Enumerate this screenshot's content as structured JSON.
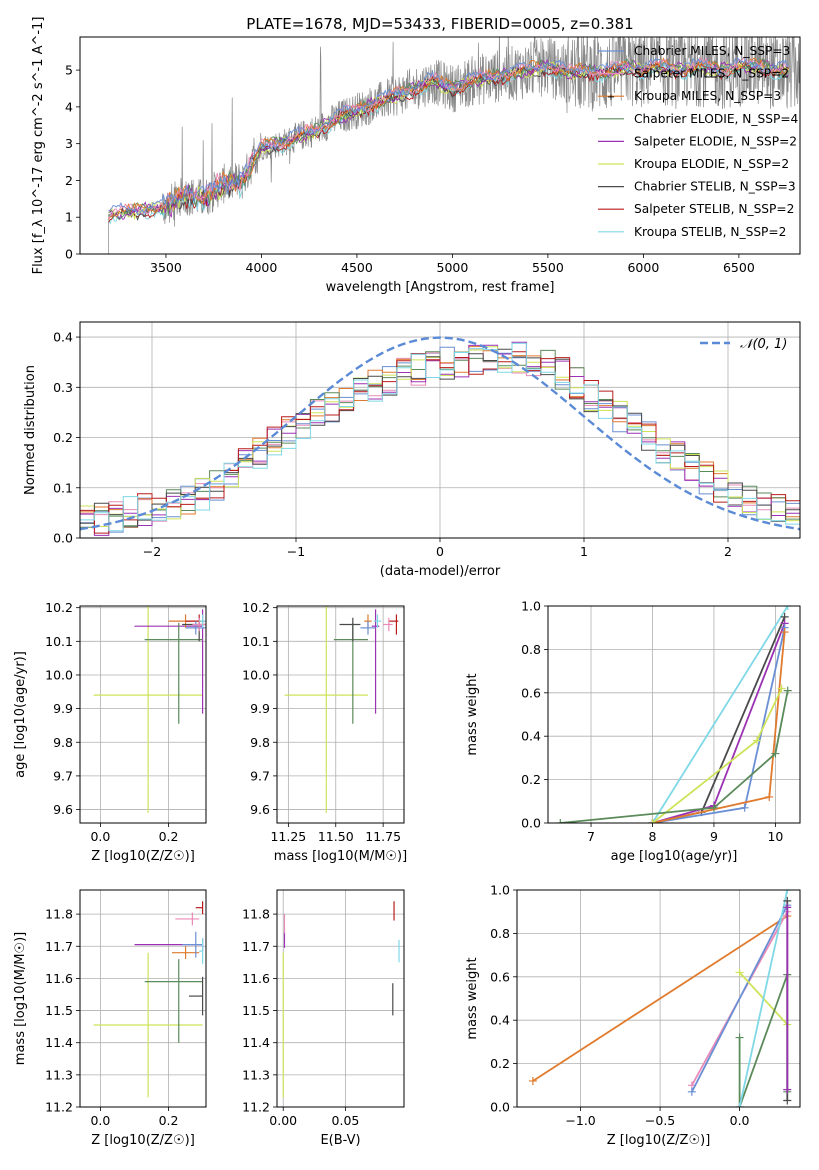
{
  "colors": {
    "chabrier_miles": "#6a8fd4",
    "salpeter_miles": "#e98bb8",
    "kroupa_miles": "#e07a2d",
    "chabrier_elodie": "#5b8a5b",
    "salpeter_elodie": "#9b32b4",
    "kroupa_elodie": "#cfe35a",
    "chabrier_stelib": "#4a4a4a",
    "salpeter_stelib": "#b81c1c",
    "kroupa_stelib": "#7fd8e6",
    "normal_curve": "#5b8ad6",
    "spectrum_gray": "#888888"
  },
  "chart_data": [
    {
      "id": "spectrum",
      "type": "line",
      "title": "PLATE=1678, MJD=53433, FIBERID=0005, z=0.381",
      "xlabel": "wavelength [Angstrom, rest frame]",
      "ylabel": "Flux [f_λ 10^-17 erg cm^-2 s^-1 A^-1]",
      "xlim": [
        3050,
        6820
      ],
      "ylim": [
        0,
        5.9
      ],
      "xticks": [
        3500,
        4000,
        4500,
        5000,
        5500,
        6000,
        6500
      ],
      "yticks": [
        0,
        1,
        2,
        3,
        4,
        5
      ],
      "legend_position": "top-right",
      "legend": [
        {
          "label": "Chabrier MILES, N_SSP=3",
          "color_key": "chabrier_miles"
        },
        {
          "label": "Salpeter MILES, N_SSP=2",
          "color_key": "salpeter_miles"
        },
        {
          "label": "Kroupa MILES, N_SSP=3",
          "color_key": "kroupa_miles"
        },
        {
          "label": "Chabrier ELODIE, N_SSP=4",
          "color_key": "chabrier_elodie"
        },
        {
          "label": "Salpeter ELODIE, N_SSP=2",
          "color_key": "salpeter_elodie"
        },
        {
          "label": "Kroupa ELODIE, N_SSP=2",
          "color_key": "kroupa_elodie"
        },
        {
          "label": "Chabrier STELIB, N_SSP=3",
          "color_key": "chabrier_stelib"
        },
        {
          "label": "Salpeter STELIB, N_SSP=2",
          "color_key": "salpeter_stelib"
        },
        {
          "label": "Kroupa STELIB, N_SSP=2",
          "color_key": "kroupa_stelib"
        }
      ],
      "model_continuum": {
        "x": [
          3200,
          3300,
          3400,
          3500,
          3600,
          3700,
          3800,
          3900,
          4000,
          4100,
          4200,
          4300,
          4400,
          4500,
          4600,
          4700,
          4800,
          4900,
          5000,
          5100,
          5200,
          5300,
          5400,
          5500,
          5600,
          5700,
          5800,
          5900,
          6000,
          6100,
          6200,
          6300,
          6400,
          6500,
          6600,
          6700
        ],
        "y": [
          1.05,
          1.15,
          1.2,
          1.3,
          1.6,
          1.5,
          1.9,
          2.0,
          2.9,
          3.0,
          3.2,
          3.4,
          3.7,
          3.9,
          4.1,
          4.3,
          4.5,
          4.7,
          4.5,
          4.7,
          4.8,
          4.9,
          5.0,
          5.1,
          4.9,
          5.0,
          4.9,
          5.1,
          5.0,
          5.1,
          5.0,
          5.1,
          5.0,
          5.1,
          5.1,
          5.0
        ]
      }
    },
    {
      "id": "residuals",
      "type": "line",
      "xlabel": "(data-model)/error",
      "ylabel": "Normed distribution",
      "xlim": [
        -2.5,
        2.5
      ],
      "ylim": [
        0,
        0.43
      ],
      "xticks": [
        -2,
        -1,
        0,
        1,
        2
      ],
      "yticks": [
        0.0,
        0.1,
        0.2,
        0.3,
        0.4
      ],
      "legend_position": "top-right",
      "legend": [
        {
          "label": "𝒩(0, 1)",
          "color_key": "normal_curve"
        }
      ],
      "hist_shape": {
        "x": [
          -2.5,
          -2.3,
          -2.1,
          -1.9,
          -1.7,
          -1.5,
          -1.3,
          -1.1,
          -0.9,
          -0.7,
          -0.5,
          -0.3,
          -0.1,
          0.1,
          0.3,
          0.5,
          0.7,
          0.9,
          1.1,
          1.3,
          1.5,
          1.7,
          1.9,
          2.1,
          2.3,
          2.5
        ],
        "y": [
          0.03,
          0.04,
          0.055,
          0.06,
          0.08,
          0.11,
          0.16,
          0.2,
          0.24,
          0.27,
          0.3,
          0.32,
          0.34,
          0.35,
          0.36,
          0.36,
          0.35,
          0.32,
          0.27,
          0.23,
          0.19,
          0.15,
          0.11,
          0.08,
          0.06,
          0.05
        ]
      }
    },
    {
      "id": "age_vs_z",
      "type": "scatter",
      "xlabel": "Z [log10(Z/Z☉)]",
      "ylabel": "age  [log10(age/yr)]",
      "xlim": [
        -0.06,
        0.31
      ],
      "ylim": [
        9.56,
        10.205
      ],
      "xticks": [
        0.0,
        0.2
      ],
      "yticks": [
        9.6,
        9.7,
        9.8,
        9.9,
        10.0,
        10.1,
        10.2
      ],
      "points": [
        {
          "key": "kroupa_elodie",
          "x": 0.14,
          "xerr": 0.16,
          "y": 9.94,
          "yerr": 0.35
        },
        {
          "key": "salpeter_elodie",
          "x": 0.3,
          "xerr_lo": 0.2,
          "xerr_hi": 0,
          "y": 10.145,
          "yerr_lo": 0.26,
          "yerr_hi": 0.05
        },
        {
          "key": "chabrier_elodie",
          "x": 0.23,
          "xerr_lo": 0.1,
          "xerr_hi": 0.07,
          "y": 10.105,
          "yerr_lo": 0.25,
          "yerr_hi": 0.05
        },
        {
          "key": "kroupa_miles",
          "x": 0.25,
          "xerr_lo": 0.05,
          "xerr_hi": 0.05,
          "y": 10.16,
          "yerr_lo": 0.02,
          "yerr_hi": 0.02
        },
        {
          "key": "chabrier_stelib",
          "x": 0.29,
          "xerr_lo": 0.05,
          "xerr_hi": 0.02,
          "y": 10.15,
          "yerr_lo": 0.05,
          "yerr_hi": 0.02
        },
        {
          "key": "salpeter_stelib",
          "x": 0.29,
          "xerr_lo": 0.04,
          "xerr_hi": 0.02,
          "y": 10.16,
          "yerr_lo": 0.02,
          "yerr_hi": 0.02
        },
        {
          "key": "chabrier_miles",
          "x": 0.28,
          "xerr_lo": 0.03,
          "xerr_hi": 0.03,
          "y": 10.14,
          "yerr_lo": 0.02,
          "yerr_hi": 0.02
        },
        {
          "key": "salpeter_miles",
          "x": 0.29,
          "xerr_lo": 0.02,
          "xerr_hi": 0.02,
          "y": 10.15,
          "yerr_lo": 0.02,
          "yerr_hi": 0.02
        },
        {
          "key": "kroupa_stelib",
          "x": 0.3,
          "xerr_lo": 0.01,
          "xerr_hi": 0.01,
          "y": 10.16,
          "yerr_lo": 0.02,
          "yerr_hi": 0.02
        }
      ]
    },
    {
      "id": "age_vs_mass",
      "type": "scatter",
      "xlabel": "mass [log10(M/M☉)]",
      "ylabel": "",
      "xlim": [
        11.19,
        11.86
      ],
      "ylim": [
        9.56,
        10.205
      ],
      "xticks": [
        11.25,
        11.5,
        11.75
      ],
      "yticks": [
        9.6,
        9.7,
        9.8,
        9.9,
        10.0,
        10.1,
        10.2
      ],
      "points": [
        {
          "key": "kroupa_elodie",
          "x": 11.45,
          "xerr": 0.22,
          "y": 9.94,
          "yerr": 0.35
        },
        {
          "key": "salpeter_elodie",
          "x": 11.71,
          "xerr_lo": 0.02,
          "xerr_hi": 0.02,
          "y": 10.145,
          "yerr_lo": 0.26,
          "yerr_hi": 0.05
        },
        {
          "key": "chabrier_elodie",
          "x": 11.59,
          "xerr_lo": 0.1,
          "xerr_hi": 0.08,
          "y": 10.105,
          "yerr_lo": 0.25,
          "yerr_hi": 0.05
        },
        {
          "key": "kroupa_miles",
          "x": 11.67,
          "xerr_lo": 0.02,
          "xerr_hi": 0.02,
          "y": 10.16,
          "yerr_lo": 0.02,
          "yerr_hi": 0.02
        },
        {
          "key": "chabrier_stelib",
          "x": 11.59,
          "xerr_lo": 0.07,
          "xerr_hi": 0.04,
          "y": 10.15,
          "yerr_lo": 0.05,
          "yerr_hi": 0.02
        },
        {
          "key": "salpeter_stelib",
          "x": 11.82,
          "xerr_lo": 0.04,
          "xerr_hi": 0.01,
          "y": 10.16,
          "yerr_lo": 0.04,
          "yerr_hi": 0.02
        },
        {
          "key": "chabrier_miles",
          "x": 11.67,
          "xerr_lo": 0.04,
          "xerr_hi": 0.04,
          "y": 10.14,
          "yerr_lo": 0.02,
          "yerr_hi": 0.02
        },
        {
          "key": "salpeter_miles",
          "x": 11.78,
          "xerr_lo": 0.03,
          "xerr_hi": 0.02,
          "y": 10.15,
          "yerr_lo": 0.02,
          "yerr_hi": 0.02
        },
        {
          "key": "kroupa_stelib",
          "x": 11.72,
          "xerr_lo": 0.02,
          "xerr_hi": 0.02,
          "y": 10.16,
          "yerr_lo": 0.02,
          "yerr_hi": 0.02
        }
      ]
    },
    {
      "id": "mass_weight_vs_age",
      "type": "line",
      "xlabel": "age  [log10(age/yr)]",
      "ylabel": "mass weight",
      "xlim": [
        6.3,
        10.4
      ],
      "ylim": [
        0,
        1.0
      ],
      "xticks": [
        7,
        8,
        9,
        10
      ],
      "yticks": [
        0.0,
        0.2,
        0.4,
        0.6,
        0.8,
        1.0
      ],
      "series": [
        {
          "key": "kroupa_stelib",
          "x": [
            8.0,
            10.2
          ],
          "y": [
            0.0,
            1.0
          ]
        },
        {
          "key": "chabrier_stelib",
          "x": [
            8.0,
            8.8,
            10.15
          ],
          "y": [
            0.0,
            0.05,
            0.95
          ]
        },
        {
          "key": "salpeter_elodie",
          "x": [
            8.0,
            9.0,
            10.15
          ],
          "y": [
            0.0,
            0.08,
            0.92
          ]
        },
        {
          "key": "chabrier_miles",
          "x": [
            8.0,
            9.5,
            10.15
          ],
          "y": [
            0.0,
            0.07,
            0.9
          ]
        },
        {
          "key": "kroupa_miles",
          "x": [
            8.0,
            9.9,
            10.15
          ],
          "y": [
            0.0,
            0.12,
            0.88
          ]
        },
        {
          "key": "kroupa_elodie",
          "x": [
            8.0,
            9.7,
            10.1
          ],
          "y": [
            0.0,
            0.38,
            0.62
          ]
        },
        {
          "key": "chabrier_elodie",
          "x": [
            6.5,
            9.0,
            10.0,
            10.2
          ],
          "y": [
            0.0,
            0.07,
            0.32,
            0.61
          ]
        }
      ]
    },
    {
      "id": "mass_vs_z",
      "type": "scatter",
      "xlabel": "Z [log10(Z/Z☉)]",
      "ylabel": "mass [log10(M/M☉)]",
      "xlim": [
        -0.06,
        0.31
      ],
      "ylim": [
        11.2,
        11.875
      ],
      "xticks": [
        0.0,
        0.2
      ],
      "yticks": [
        11.2,
        11.3,
        11.4,
        11.5,
        11.6,
        11.7,
        11.8
      ],
      "points": [
        {
          "key": "kroupa_elodie",
          "x": 0.14,
          "xerr": 0.16,
          "y": 11.455,
          "yerr": 0.225
        },
        {
          "key": "salpeter_elodie",
          "x": 0.3,
          "xerr_lo": 0.2,
          "xerr_hi": 0,
          "y": 11.705,
          "yerr_lo": 0.02,
          "yerr_hi": 0.02
        },
        {
          "key": "chabrier_elodie",
          "x": 0.23,
          "xerr_lo": 0.1,
          "xerr_hi": 0.07,
          "y": 11.59,
          "yerr_lo": 0.19,
          "yerr_hi": 0.07
        },
        {
          "key": "kroupa_miles",
          "x": 0.25,
          "xerr_lo": 0.04,
          "xerr_hi": 0.04,
          "y": 11.68,
          "yerr_lo": 0.02,
          "yerr_hi": 0.02
        },
        {
          "key": "chabrier_stelib",
          "x": 0.3,
          "xerr_lo": 0.04,
          "xerr_hi": 0.0,
          "y": 11.545,
          "yerr_lo": 0.06,
          "yerr_hi": 0.06
        },
        {
          "key": "salpeter_stelib",
          "x": 0.3,
          "xerr_lo": 0.02,
          "xerr_hi": 0.0,
          "y": 11.82,
          "yerr_lo": 0.02,
          "yerr_hi": 0.02
        },
        {
          "key": "chabrier_miles",
          "x": 0.28,
          "xerr_lo": 0.04,
          "xerr_hi": 0.02,
          "y": 11.705,
          "yerr_lo": 0.04,
          "yerr_hi": 0.04
        },
        {
          "key": "salpeter_miles",
          "x": 0.27,
          "xerr_lo": 0.05,
          "xerr_hi": 0.02,
          "y": 11.785,
          "yerr_lo": 0.02,
          "yerr_hi": 0.02
        },
        {
          "key": "kroupa_stelib",
          "x": 0.3,
          "xerr_lo": 0.01,
          "xerr_hi": 0.0,
          "y": 11.685,
          "yerr_lo": 0.04,
          "yerr_hi": 0.04
        }
      ]
    },
    {
      "id": "mass_vs_ebv",
      "type": "scatter",
      "xlabel": "E(B-V)",
      "ylabel": "",
      "xlim": [
        -0.005,
        0.097
      ],
      "ylim": [
        11.2,
        11.875
      ],
      "xticks": [
        0.0,
        0.05
      ],
      "xtick_labels": [
        "0.00",
        "0.05"
      ],
      "yticks": [
        11.2,
        11.3,
        11.4,
        11.5,
        11.6,
        11.7,
        11.8
      ],
      "points": [
        {
          "key": "kroupa_elodie",
          "x": 0.0,
          "y": 11.455,
          "yerr_lo": 0.225,
          "yerr_hi": 0.225
        },
        {
          "key": "salpeter_elodie",
          "x": 0.001,
          "y": 11.72,
          "yerr_lo": 0.025,
          "yerr_hi": 0.025
        },
        {
          "key": "salpeter_miles",
          "x": 0.001,
          "y": 11.77,
          "yerr_lo": 0.03,
          "yerr_hi": 0.03
        },
        {
          "key": "chabrier_stelib",
          "x": 0.088,
          "y": 11.535,
          "yerr_lo": 0.05,
          "yerr_hi": 0.05
        },
        {
          "key": "salpeter_stelib",
          "x": 0.089,
          "y": 11.81,
          "yerr_lo": 0.03,
          "yerr_hi": 0.03
        },
        {
          "key": "kroupa_stelib",
          "x": 0.093,
          "y": 11.685,
          "yerr_lo": 0.035,
          "yerr_hi": 0.035
        }
      ]
    },
    {
      "id": "mass_weight_vs_z",
      "type": "line",
      "xlabel": "Z [log10(Z/Z☉)]",
      "ylabel": "mass weight",
      "xlim": [
        -1.4,
        0.38
      ],
      "ylim": [
        0,
        1.0
      ],
      "xticks": [
        -1.0,
        -0.5,
        0.0
      ],
      "yticks": [
        0.0,
        0.2,
        0.4,
        0.6,
        0.8,
        1.0
      ],
      "series": [
        {
          "key": "kroupa_miles",
          "x": [
            -1.3,
            0.3
          ],
          "y": [
            0.12,
            0.88
          ]
        },
        {
          "key": "salpeter_miles",
          "x": [
            -0.3,
            0.3
          ],
          "y": [
            0.1,
            0.9
          ]
        },
        {
          "key": "chabrier_miles",
          "x": [
            -0.3,
            0.3
          ],
          "y": [
            0.07,
            0.93
          ]
        },
        {
          "key": "kroupa_elodie",
          "x": [
            0.0,
            0.3
          ],
          "y": [
            0.62,
            0.38
          ]
        },
        {
          "key": "chabrier_elodie",
          "x": [
            0.0,
            0.0,
            0.3,
            0.3
          ],
          "y": [
            0.32,
            0.0,
            0.61,
            0.07
          ]
        },
        {
          "key": "kroupa_stelib",
          "x": [
            0.0,
            0.3
          ],
          "y": [
            0.0,
            1.0
          ]
        },
        {
          "key": "chabrier_stelib",
          "x": [
            0.3,
            0.3
          ],
          "y": [
            0.03,
            0.95
          ]
        },
        {
          "key": "salpeter_elodie",
          "x": [
            0.3,
            0.3
          ],
          "y": [
            0.08,
            0.92
          ]
        }
      ]
    }
  ]
}
